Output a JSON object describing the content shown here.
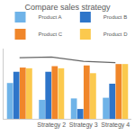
{
  "chart_data": {
    "type": "bar",
    "title": "Compare sales strategy",
    "categories": [
      null,
      "Strategy 2",
      "Strategy 3",
      "Strategy 4"
    ],
    "series": [
      {
        "name": "Product A",
        "color": "#6fb3e8",
        "values": [
          51,
          27,
          29,
          30
        ]
      },
      {
        "name": "Product B",
        "color": "#2e75c9",
        "values": [
          67,
          67,
          14,
          50
        ]
      },
      {
        "name": "Product C",
        "color": "#f0862a",
        "values": [
          73,
          75,
          76,
          78
        ]
      },
      {
        "name": "Product D",
        "color": "#fbc94e",
        "values": [
          72,
          72,
          65,
          78
        ]
      },
      {
        "type": "line",
        "color": "#666666",
        "values": [
          87,
          88,
          82,
          80
        ]
      }
    ],
    "ylim": [
      0,
      100
    ],
    "grid": false,
    "legend": "top",
    "tick_labels": "x"
  }
}
